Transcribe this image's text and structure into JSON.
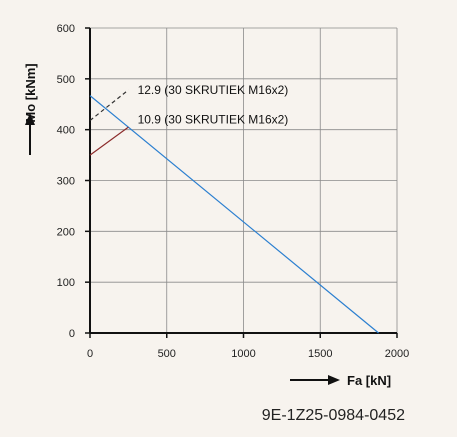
{
  "chart_data": {
    "type": "line",
    "xlabel": "Fa [kN]",
    "ylabel": "Mo [kNm]",
    "xlim": [
      0,
      2000
    ],
    "ylim": [
      0,
      600
    ],
    "xticks": [
      0,
      500,
      1000,
      1500,
      2000
    ],
    "yticks": [
      0,
      100,
      200,
      300,
      400,
      500,
      600
    ],
    "grid": true,
    "series": [
      {
        "x": [
          0,
          1880
        ],
        "y": [
          467,
          0
        ],
        "color": "#2b7fd0",
        "style": "solid"
      },
      {
        "name": "10.9 (30 SKRUTIEK M16x2)",
        "x": [
          0,
          250
        ],
        "y": [
          350,
          405
        ],
        "color": "#8b2a2a",
        "style": "solid"
      },
      {
        "name": "12.9 (30 SKRUTIEK M16x2)",
        "x": [
          0,
          250
        ],
        "y": [
          418,
          478
        ],
        "color": "#333333",
        "style": "dashed"
      }
    ],
    "annotations": [
      {
        "text": "12.9 (30 SKRUTIEK M16x2)",
        "x": 310,
        "y": 478
      },
      {
        "text": "10.9 (30 SKRUTIEK M16x2)",
        "x": 310,
        "y": 420
      }
    ]
  },
  "footer": {
    "code": "9E-1Z25-0984-0452"
  }
}
